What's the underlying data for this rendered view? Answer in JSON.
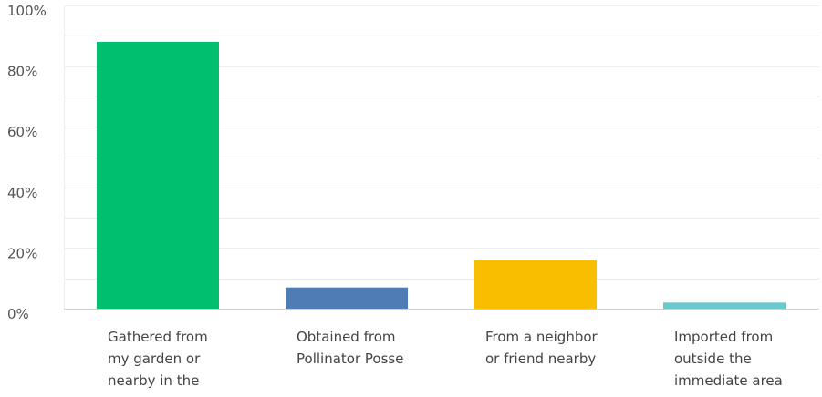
{
  "chart_data": {
    "type": "bar",
    "categories": [
      "Gathered from my garden or nearby in the",
      "Obtained from Pollinator Posse",
      "From a neighbor or friend nearby",
      "Imported from outside the immediate area"
    ],
    "category_lines": [
      [
        "Gathered from",
        "my garden or",
        "nearby in the"
      ],
      [
        "Obtained from",
        "Pollinator Posse"
      ],
      [
        "From a neighbor",
        "or friend nearby"
      ],
      [
        "Imported from",
        "outside the",
        "immediate area"
      ]
    ],
    "values": [
      88,
      7,
      16,
      2
    ],
    "colors": [
      "#00bf6f",
      "#507cb6",
      "#f9be00",
      "#6bc8cd"
    ],
    "yticks": [
      0,
      20,
      40,
      60,
      80,
      100
    ],
    "ytick_labels": [
      "0%",
      "20%",
      "40%",
      "60%",
      "80%",
      "100%"
    ],
    "ylim": [
      0,
      100
    ],
    "grid": true,
    "title": "",
    "xlabel": "",
    "ylabel": ""
  }
}
